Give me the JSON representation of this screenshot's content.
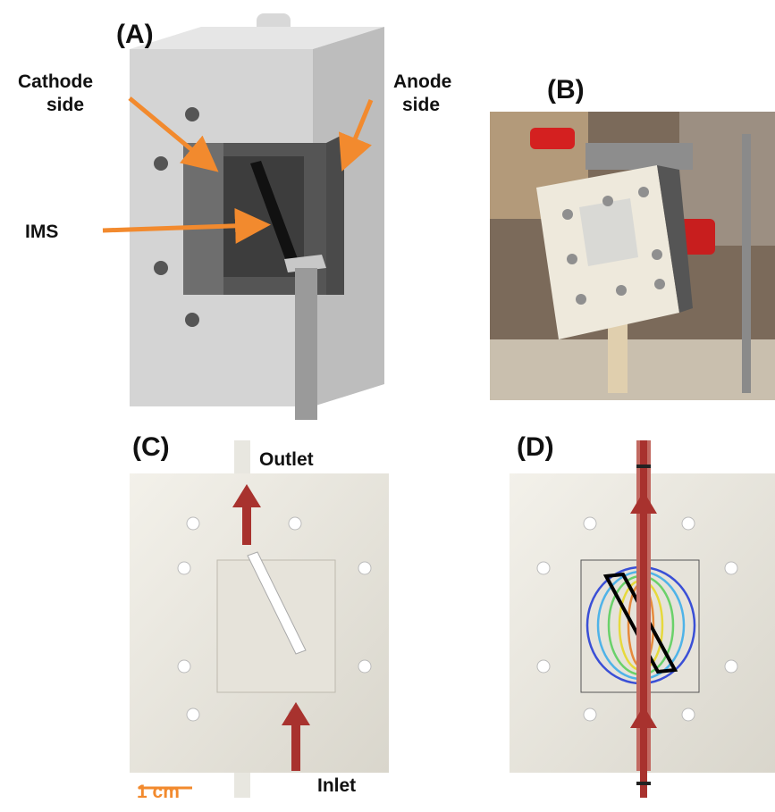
{
  "panels": {
    "a": {
      "label": "(A)",
      "cathode": [
        "Cathode",
        "side"
      ],
      "anode": [
        "Anode",
        "side"
      ],
      "ims": "IMS"
    },
    "b": {
      "label": "(B)"
    },
    "c": {
      "label": "(C)",
      "outlet": "Outlet",
      "inlet": "Inlet",
      "scale_bar": "1 cm"
    },
    "d": {
      "label": "(D)"
    }
  }
}
